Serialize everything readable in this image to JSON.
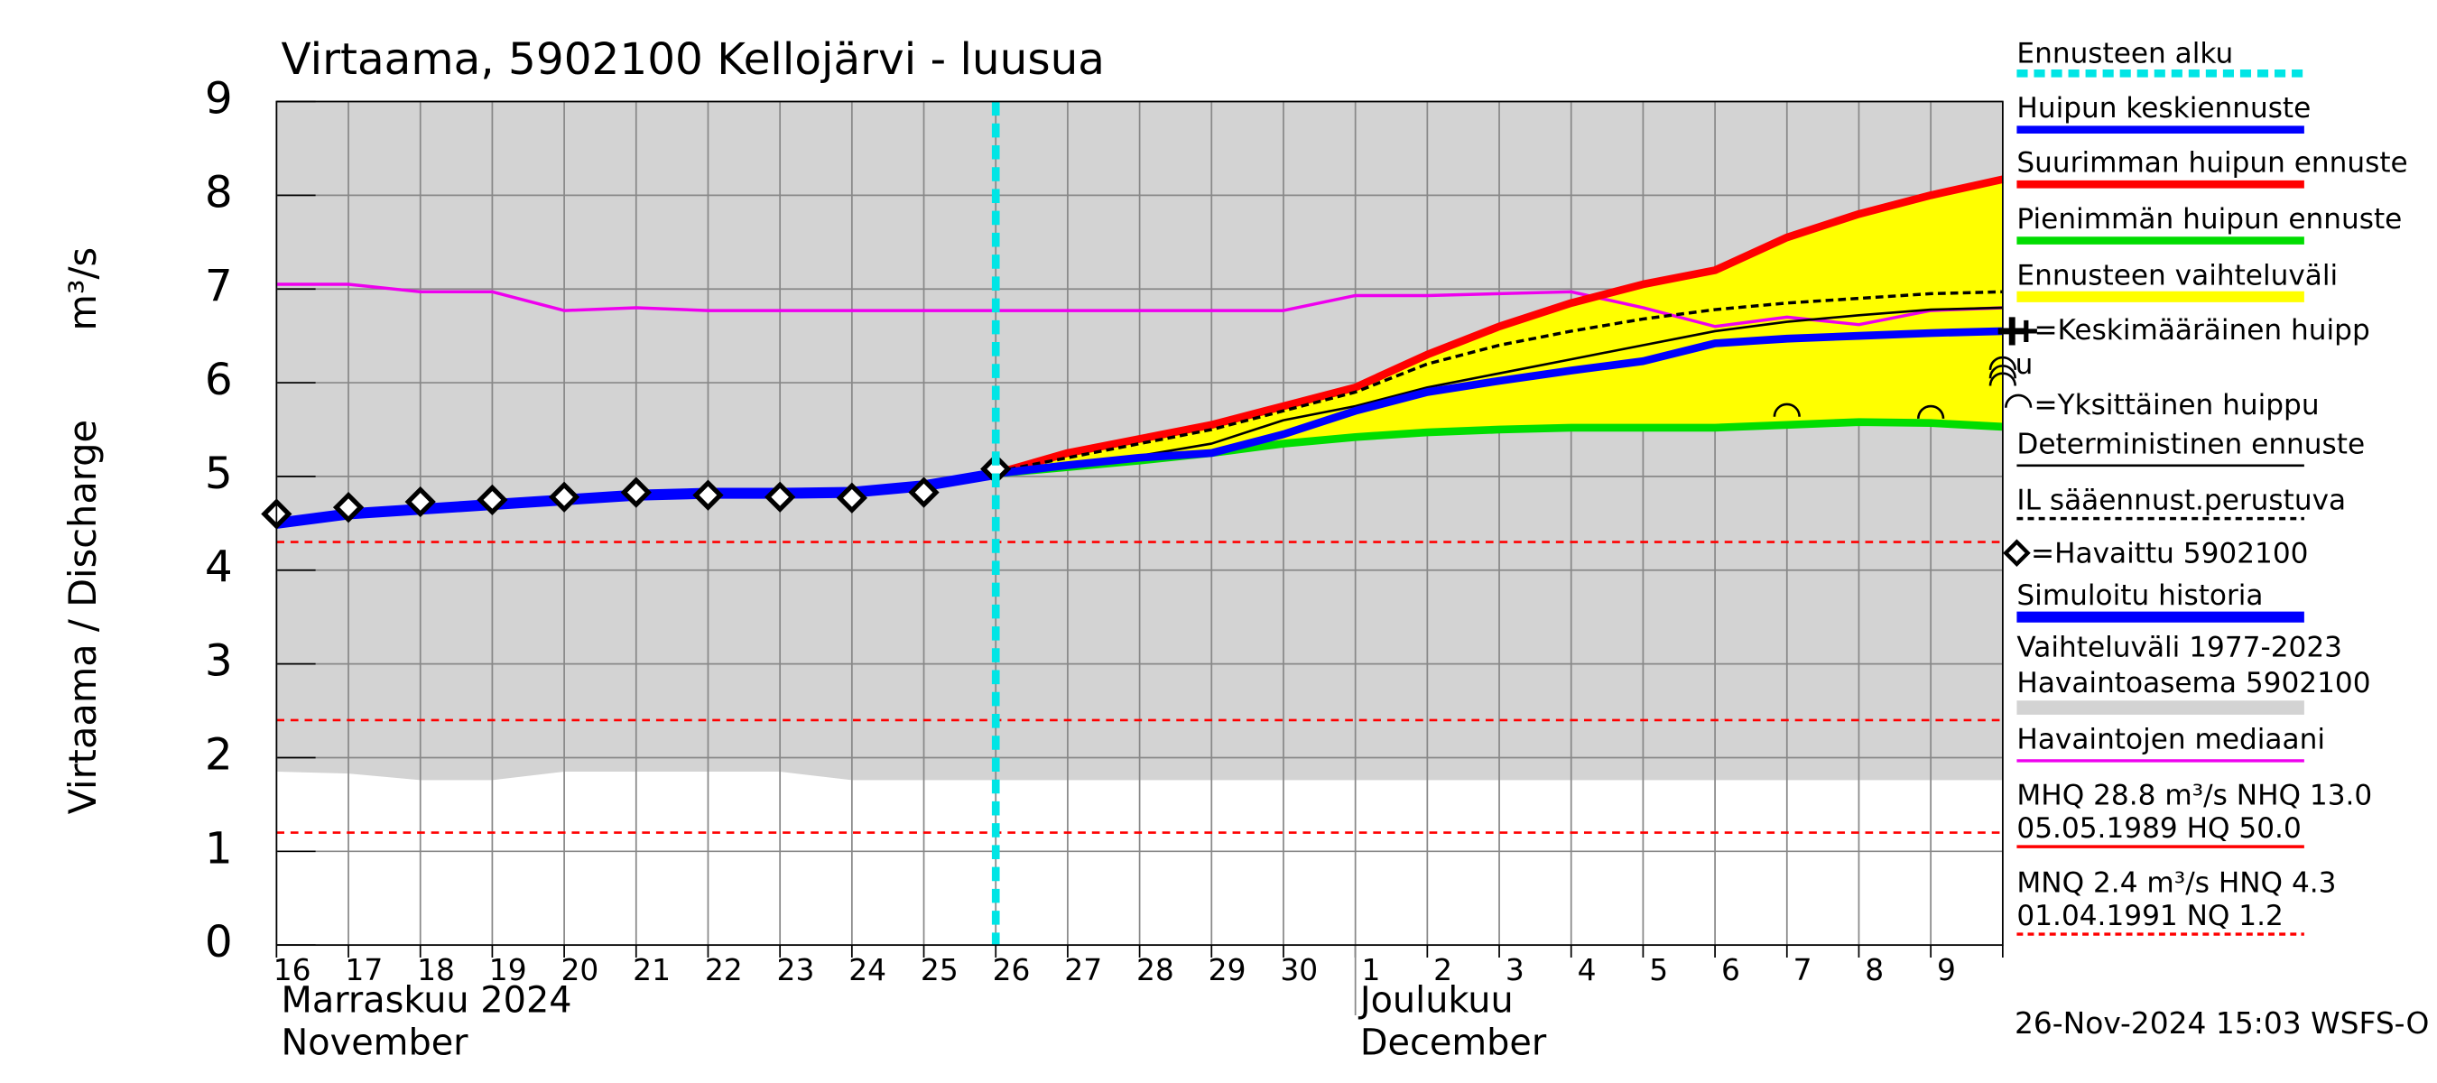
{
  "chart_data": {
    "type": "line",
    "title": "Virtaama, 5902100 Kellojärvi - luusua",
    "y_label": "Virtaama / Discharge",
    "y_unit": "m³/s",
    "timestamp": "26-Nov-2024 15:03 WSFS-O",
    "categories": [
      "16",
      "17",
      "18",
      "19",
      "20",
      "21",
      "22",
      "23",
      "24",
      "25",
      "26",
      "27",
      "28",
      "29",
      "30",
      "1",
      "2",
      "3",
      "4",
      "5",
      "6",
      "7",
      "8",
      "9",
      null
    ],
    "months": [
      {
        "x": 0,
        "labels": [
          "Marraskuu 2024",
          "November"
        ]
      },
      {
        "x": 15,
        "labels": [
          "Joulukuu",
          "December"
        ]
      }
    ],
    "ylim": [
      0,
      9
    ],
    "yticks": [
      0,
      1,
      2,
      3,
      4,
      5,
      6,
      7,
      8,
      9
    ],
    "grid": true,
    "series": [
      {
        "name": "Huipun keskiennuste",
        "color": "#0000ff",
        "values": [
          null,
          null,
          null,
          null,
          null,
          null,
          null,
          null,
          null,
          null,
          5.03,
          5.12,
          5.2,
          5.25,
          5.45,
          5.7,
          5.9,
          6.02,
          6.13,
          6.23,
          6.42,
          6.47,
          6.5,
          6.53,
          6.55
        ]
      },
      {
        "name": "Suurimman huipun ennuste",
        "color": "#ff0000",
        "values": [
          null,
          null,
          null,
          null,
          null,
          null,
          null,
          null,
          null,
          null,
          5.03,
          5.25,
          5.4,
          5.55,
          5.75,
          5.95,
          6.3,
          6.6,
          6.85,
          7.05,
          7.2,
          7.55,
          7.8,
          8.0,
          8.17
        ]
      },
      {
        "name": "Pienimmän huipun ennuste",
        "color": "#00dd00",
        "values": [
          null,
          null,
          null,
          null,
          null,
          null,
          null,
          null,
          null,
          null,
          5.03,
          5.1,
          5.17,
          5.25,
          5.35,
          5.42,
          5.47,
          5.5,
          5.52,
          5.52,
          5.52,
          5.55,
          5.58,
          5.57,
          5.53
        ]
      },
      {
        "name": "Deterministinen ennuste",
        "color": "#000000",
        "values": [
          null,
          null,
          null,
          null,
          null,
          null,
          null,
          null,
          null,
          null,
          5.03,
          5.12,
          5.22,
          5.35,
          5.6,
          5.75,
          5.95,
          6.1,
          6.25,
          6.4,
          6.55,
          6.65,
          6.72,
          6.78,
          6.8
        ]
      },
      {
        "name": "IL sääennust.perustuva",
        "color": "#000000",
        "dashed": true,
        "values": [
          null,
          null,
          null,
          null,
          null,
          null,
          null,
          null,
          null,
          null,
          5.05,
          5.2,
          5.35,
          5.5,
          5.7,
          5.9,
          6.2,
          6.4,
          6.55,
          6.68,
          6.78,
          6.85,
          6.9,
          6.95,
          6.97
        ]
      },
      {
        "name": "=Havaittu 5902100",
        "color": "#000000",
        "marker": "diamond",
        "values": [
          4.6,
          4.67,
          4.73,
          4.75,
          4.78,
          4.83,
          4.8,
          4.78,
          4.77,
          4.83,
          5.08,
          null,
          null,
          null,
          null,
          null,
          null,
          null,
          null,
          null,
          null,
          null,
          null,
          null,
          null
        ]
      },
      {
        "name": "Simuloitu historia",
        "color": "#0000ff",
        "values": [
          4.5,
          4.6,
          4.65,
          4.7,
          4.75,
          4.8,
          4.82,
          4.82,
          4.83,
          4.9,
          5.03,
          null,
          null,
          null,
          null,
          null,
          null,
          null,
          null,
          null,
          null,
          null,
          null,
          null,
          null
        ]
      },
      {
        "name": "Havaintojen mediaani",
        "color": "#ee00ee",
        "values": [
          7.05,
          7.05,
          6.97,
          6.97,
          6.77,
          6.8,
          6.77,
          6.77,
          6.77,
          6.77,
          6.77,
          6.77,
          6.77,
          6.77,
          6.77,
          6.93,
          6.93,
          6.95,
          6.97,
          6.8,
          6.6,
          6.7,
          6.62,
          6.77,
          6.8
        ]
      }
    ],
    "forecast_range": {
      "name": "Ennusteen vaihteluväli",
      "color": "#ffff00"
    },
    "forecast_start": {
      "name": "Ennusteen alku",
      "color": "#00e5e5",
      "x": 10
    },
    "history_range": {
      "name_lines": [
        "Vaihteluväli 1977-2023",
        " Havaintoasema 5902100"
      ],
      "color": "#d3d3d3",
      "low": [
        1.85,
        1.83,
        1.76,
        1.76,
        1.85,
        1.85,
        1.85,
        1.85,
        1.76,
        1.76,
        1.76,
        1.76,
        1.76,
        1.76,
        1.76,
        1.76,
        1.76,
        1.76,
        1.76,
        1.76,
        1.76,
        1.76,
        1.76,
        1.76,
        1.76
      ],
      "high": [
        9,
        9,
        9,
        9,
        9,
        9,
        9,
        9,
        9,
        9,
        9,
        9,
        9,
        9,
        9,
        9,
        9,
        9,
        9,
        9,
        9,
        9,
        9,
        9,
        9
      ]
    },
    "mean_peak": {
      "name_lines": [
        "=Keskimääräinen huipp",
        "u"
      ],
      "x": 24,
      "value": 6.55
    },
    "single_peaks": {
      "name": "=Yksittäinen huippu",
      "x": [
        21,
        23,
        24,
        24,
        24
      ],
      "values": [
        5.72,
        5.7,
        6.22,
        6.13,
        6.05
      ]
    },
    "reference_lines": [
      {
        "value": 4.3,
        "color": "#ff0000"
      },
      {
        "value": 2.4,
        "color": "#ff0000"
      },
      {
        "value": 1.2,
        "color": "#ff0000"
      }
    ],
    "stats": [
      {
        "lines": [
          "MHQ 28.8 m³/s NHQ 13.0",
          "05.05.1989 HQ 50.0"
        ],
        "color": "#ff0000",
        "dashed": false
      },
      {
        "lines": [
          "MNQ  2.4 m³/s HNQ  4.3",
          "01.04.1991 NQ  1.2"
        ],
        "color": "#ff0000",
        "dashed": true
      }
    ]
  }
}
